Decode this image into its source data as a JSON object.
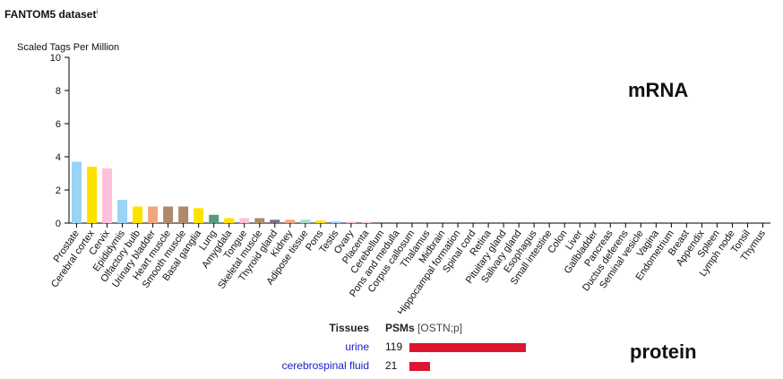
{
  "header": {
    "title": "FANTOM5 dataset",
    "info_mark": "i"
  },
  "labels": {
    "mrna": "mRNA",
    "protein": "protein"
  },
  "chart_data": {
    "type": "bar",
    "ylabel": "Scaled Tags Per Million",
    "ylim": [
      0,
      10
    ],
    "yticks": [
      0,
      2,
      4,
      6,
      8,
      10
    ],
    "categories": [
      "Prostate",
      "Cerebral cortex",
      "Cervix",
      "Epididymis",
      "Olfactory bulb",
      "Urinary bladder",
      "Heart muscle",
      "Smooth muscle",
      "Basal ganglia",
      "Lung",
      "Amygdala",
      "Tongue",
      "Skeletal muscle",
      "Thyroid gland",
      "Kidney",
      "Adipose tissue",
      "Pons",
      "Testis",
      "Ovary",
      "Placenta",
      "Cerebellum",
      "Pons and medulla",
      "Corpus callosum",
      "Thalamus",
      "Midbrain",
      "Hippocampal formation",
      "Spinal cord",
      "Retina",
      "Pituitary gland",
      "Salivary gland",
      "Esophagus",
      "Small intestine",
      "Colon",
      "Liver",
      "Gallbladder",
      "Pancreas",
      "Ductus deferens",
      "Seminal vesicle",
      "Vagina",
      "Endometrium",
      "Breast",
      "Appendix",
      "Spleen",
      "Lymph node",
      "Tonsil",
      "Thymus"
    ],
    "values": [
      3.7,
      3.4,
      3.3,
      1.4,
      1.0,
      1.0,
      1.0,
      1.0,
      0.9,
      0.5,
      0.3,
      0.3,
      0.3,
      0.2,
      0.2,
      0.2,
      0.15,
      0.1,
      0.08,
      0.08,
      0,
      0,
      0,
      0,
      0,
      0,
      0,
      0,
      0,
      0,
      0,
      0,
      0,
      0,
      0,
      0,
      0,
      0,
      0,
      0,
      0,
      0,
      0,
      0,
      0,
      0
    ],
    "colors": [
      "#99d3f5",
      "#ffe100",
      "#ffc0db",
      "#99d3f5",
      "#ffe100",
      "#f2a57c",
      "#b0896a",
      "#b0896a",
      "#ffe100",
      "#5a9a7d",
      "#ffe100",
      "#ffc0db",
      "#b0896a",
      "#7b6a8b",
      "#f2a57c",
      "#a7dcc9",
      "#ffe100",
      "#99d3f5",
      "#ffc0db",
      "#ffc0db",
      "#ffe100",
      "#ffe100",
      "#ffe100",
      "#ffe100",
      "#ffe100",
      "#ffe100",
      "#ffe100",
      "#99d3f5",
      "#7b6a8b",
      "#b0896a",
      "#b0896a",
      "#b0896a",
      "#b0896a",
      "#b0896a",
      "#b0896a",
      "#b0896a",
      "#99d3f5",
      "#99d3f5",
      "#ffc0db",
      "#ffc0db",
      "#ffc0db",
      "#c0392b",
      "#c0392b",
      "#c0392b",
      "#c0392b",
      "#c0392b"
    ]
  },
  "protein": {
    "headers": {
      "tissues": "Tissues",
      "psms": "PSMs",
      "psms_suffix": "[OSTN;p]"
    },
    "bar_color": "#dc1430",
    "max_value": 119,
    "rows": [
      {
        "tissue": "urine",
        "value": 119,
        "value_text": "119"
      },
      {
        "tissue": "cerebrospinal fluid",
        "value": 21,
        "value_text": "21"
      }
    ]
  }
}
